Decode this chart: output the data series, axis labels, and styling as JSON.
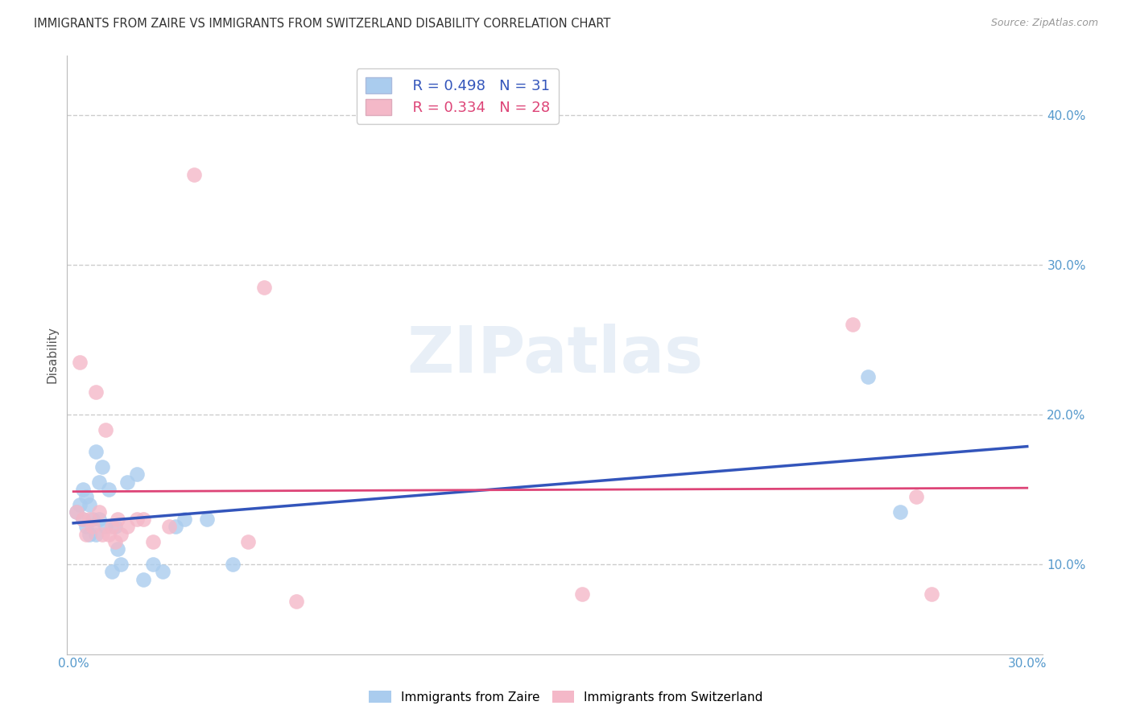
{
  "title": "IMMIGRANTS FROM ZAIRE VS IMMIGRANTS FROM SWITZERLAND DISABILITY CORRELATION CHART",
  "source": "Source: ZipAtlas.com",
  "ylabel": "Disability",
  "xlim": [
    -0.002,
    0.305
  ],
  "ylim": [
    0.04,
    0.44
  ],
  "xticks": [
    0.0,
    0.05,
    0.1,
    0.15,
    0.2,
    0.25,
    0.3
  ],
  "xtick_labels_show": [
    "0.0%",
    "",
    "",
    "",
    "",
    "",
    "30.0%"
  ],
  "yticks": [
    0.1,
    0.2,
    0.3,
    0.4
  ],
  "ytick_labels": [
    "10.0%",
    "20.0%",
    "30.0%",
    "40.0%"
  ],
  "grid_color": "#cccccc",
  "background_color": "#ffffff",
  "watermark_text": "ZIPatlas",
  "legend_R_zaire": "0.498",
  "legend_N_zaire": "31",
  "legend_R_swiss": "0.334",
  "legend_N_swiss": "28",
  "blue_color": "#aaccee",
  "pink_color": "#f4b8c8",
  "blue_line_color": "#3355bb",
  "pink_line_color": "#dd4477",
  "tick_color": "#5599cc",
  "zaire_x": [
    0.001,
    0.002,
    0.003,
    0.003,
    0.004,
    0.004,
    0.005,
    0.005,
    0.006,
    0.007,
    0.007,
    0.008,
    0.008,
    0.009,
    0.01,
    0.011,
    0.012,
    0.013,
    0.014,
    0.015,
    0.017,
    0.02,
    0.022,
    0.025,
    0.028,
    0.032,
    0.035,
    0.042,
    0.05,
    0.25,
    0.26
  ],
  "zaire_y": [
    0.135,
    0.14,
    0.13,
    0.15,
    0.125,
    0.145,
    0.14,
    0.12,
    0.13,
    0.12,
    0.175,
    0.13,
    0.155,
    0.165,
    0.125,
    0.15,
    0.095,
    0.125,
    0.11,
    0.1,
    0.155,
    0.16,
    0.09,
    0.1,
    0.095,
    0.125,
    0.13,
    0.13,
    0.1,
    0.225,
    0.135
  ],
  "swiss_x": [
    0.001,
    0.002,
    0.003,
    0.004,
    0.005,
    0.006,
    0.007,
    0.008,
    0.009,
    0.01,
    0.011,
    0.012,
    0.013,
    0.014,
    0.015,
    0.017,
    0.02,
    0.022,
    0.025,
    0.03,
    0.038,
    0.055,
    0.06,
    0.07,
    0.16,
    0.245,
    0.265,
    0.27
  ],
  "swiss_y": [
    0.135,
    0.235,
    0.13,
    0.12,
    0.13,
    0.125,
    0.215,
    0.135,
    0.12,
    0.19,
    0.12,
    0.125,
    0.115,
    0.13,
    0.12,
    0.125,
    0.13,
    0.13,
    0.115,
    0.125,
    0.36,
    0.115,
    0.285,
    0.075,
    0.08,
    0.26,
    0.145,
    0.08
  ]
}
